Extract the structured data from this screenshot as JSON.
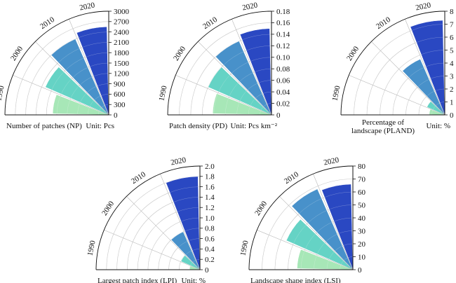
{
  "colors": {
    "decade_1990": "#a3e6b4",
    "decade_2000": "#5dd1c2",
    "decade_2010": "#3f8cc8",
    "decade_2020": "#1f3fbf",
    "grid": "#b7b7b7",
    "axis": "#111111"
  },
  "chart_data": [
    {
      "type": "bar",
      "categories": [
        "1990",
        "2000",
        "2010",
        "2020"
      ],
      "values": [
        1620,
        2000,
        2400,
        2550
      ],
      "ylim": [
        0,
        3000
      ],
      "ticks": [
        "0",
        "300",
        "600",
        "900",
        "1200",
        "1500",
        "1800",
        "2100",
        "2400",
        "2700",
        "3000"
      ],
      "xlabel": "Number of patches (NP)",
      "unit": "Unit: Pcs"
    },
    {
      "type": "bar",
      "categories": [
        "1990",
        "2000",
        "2010",
        "2020"
      ],
      "values": [
        0.102,
        0.12,
        0.14,
        0.15
      ],
      "ylim": [
        0,
        0.18
      ],
      "ticks": [
        "0",
        "0.02",
        "0.04",
        "0.06",
        "0.08",
        "0.10",
        "0.12",
        "0.14",
        "0.16",
        "0.18"
      ],
      "xlabel": "Patch density (PD)",
      "unit": "Unit: Pcs km⁻²"
    },
    {
      "type": "bar",
      "categories": [
        "1990",
        "2000",
        "2010",
        "2020"
      ],
      "values": [
        1.2,
        1.5,
        4.7,
        7.3
      ],
      "ylim": [
        0,
        8
      ],
      "ticks": [
        "0",
        "1",
        "2",
        "3",
        "4",
        "5",
        "6",
        "7",
        "8"
      ],
      "xlabel": "Percentage of landscape (PLAND)",
      "xlabel_lines": [
        "Percentage of",
        "landscape (PLAND)"
      ],
      "unit": "Unit: %"
    },
    {
      "type": "bar",
      "categories": [
        "1990",
        "2000",
        "2010",
        "2020"
      ],
      "values": [
        0.2,
        0.4,
        0.8,
        1.8
      ],
      "ylim": [
        0,
        2.0
      ],
      "ticks": [
        "0",
        "0.2",
        "0.4",
        "0.6",
        "0.8",
        "1.0",
        "1.2",
        "1.4",
        "1.6",
        "1.8",
        "2.0"
      ],
      "xlabel": "Largest patch index (LPI)",
      "unit": "Unit: %"
    },
    {
      "type": "bar",
      "categories": [
        "1990",
        "2000",
        "2010",
        "2020"
      ],
      "values": [
        43,
        56,
        68,
        66
      ],
      "ylim": [
        0,
        80
      ],
      "ticks": [
        "0",
        "10",
        "20",
        "30",
        "40",
        "50",
        "60",
        "70",
        "80"
      ],
      "xlabel": "Landscape shape index (LSI)"
    }
  ]
}
